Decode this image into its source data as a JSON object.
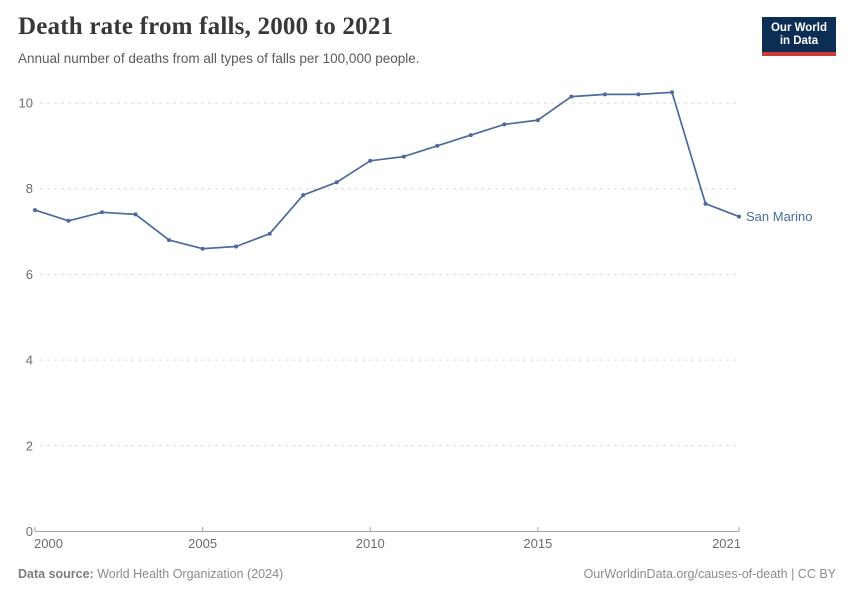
{
  "header": {
    "title": "Death rate from falls, 2000 to 2021",
    "subtitle": "Annual number of deaths from all types of falls per 100,000 people."
  },
  "logo": {
    "line1": "Our World",
    "line2": "in Data"
  },
  "chart_data": {
    "type": "line",
    "title": "Death rate from falls, 2000 to 2021",
    "subtitle": "Annual number of deaths from all types of falls per 100,000 people.",
    "x": [
      2000,
      2001,
      2002,
      2003,
      2004,
      2005,
      2006,
      2007,
      2008,
      2009,
      2010,
      2011,
      2012,
      2013,
      2014,
      2015,
      2016,
      2017,
      2018,
      2019,
      2020,
      2021
    ],
    "series": [
      {
        "name": "San Marino",
        "color": "#4C6A9C",
        "values": [
          7.5,
          7.25,
          7.45,
          7.4,
          6.8,
          6.6,
          6.65,
          6.95,
          7.85,
          8.15,
          8.65,
          8.75,
          9.0,
          9.25,
          9.5,
          9.6,
          10.15,
          10.2,
          10.2,
          10.25,
          7.65,
          7.35
        ]
      }
    ],
    "xlabel": "",
    "ylabel": "",
    "xlim": [
      2000,
      2021
    ],
    "ylim": [
      0,
      10.4
    ],
    "yticks": [
      0,
      2,
      4,
      6,
      8,
      10
    ],
    "ytick_labels": [
      "0",
      "2",
      "4",
      "6",
      "8",
      "10"
    ],
    "xticks": [
      2000,
      2005,
      2010,
      2015,
      2021
    ],
    "xtick_labels": [
      "2000",
      "2005",
      "2010",
      "2015",
      "2021"
    ],
    "grid": "horizontal-dashed",
    "legend_position": "end-of-line-label"
  },
  "annotations": {
    "entity_label": "San Marino"
  },
  "footer": {
    "source_label": "Data source:",
    "source": " World Health Organization (2024)",
    "credit": "OurWorldinData.org/causes-of-death | CC BY"
  },
  "colors": {
    "line": "#4C6A9C",
    "logo_bg": "#0d2e54",
    "logo_stripe": "#cc3b33",
    "grid": "#d9d9d9",
    "axis": "#a3a3a3",
    "tick_text": "#6d6d6d",
    "title_text": "#383838",
    "subtitle_text": "#5b5b5b",
    "footer_text": "#8b8b8b"
  }
}
